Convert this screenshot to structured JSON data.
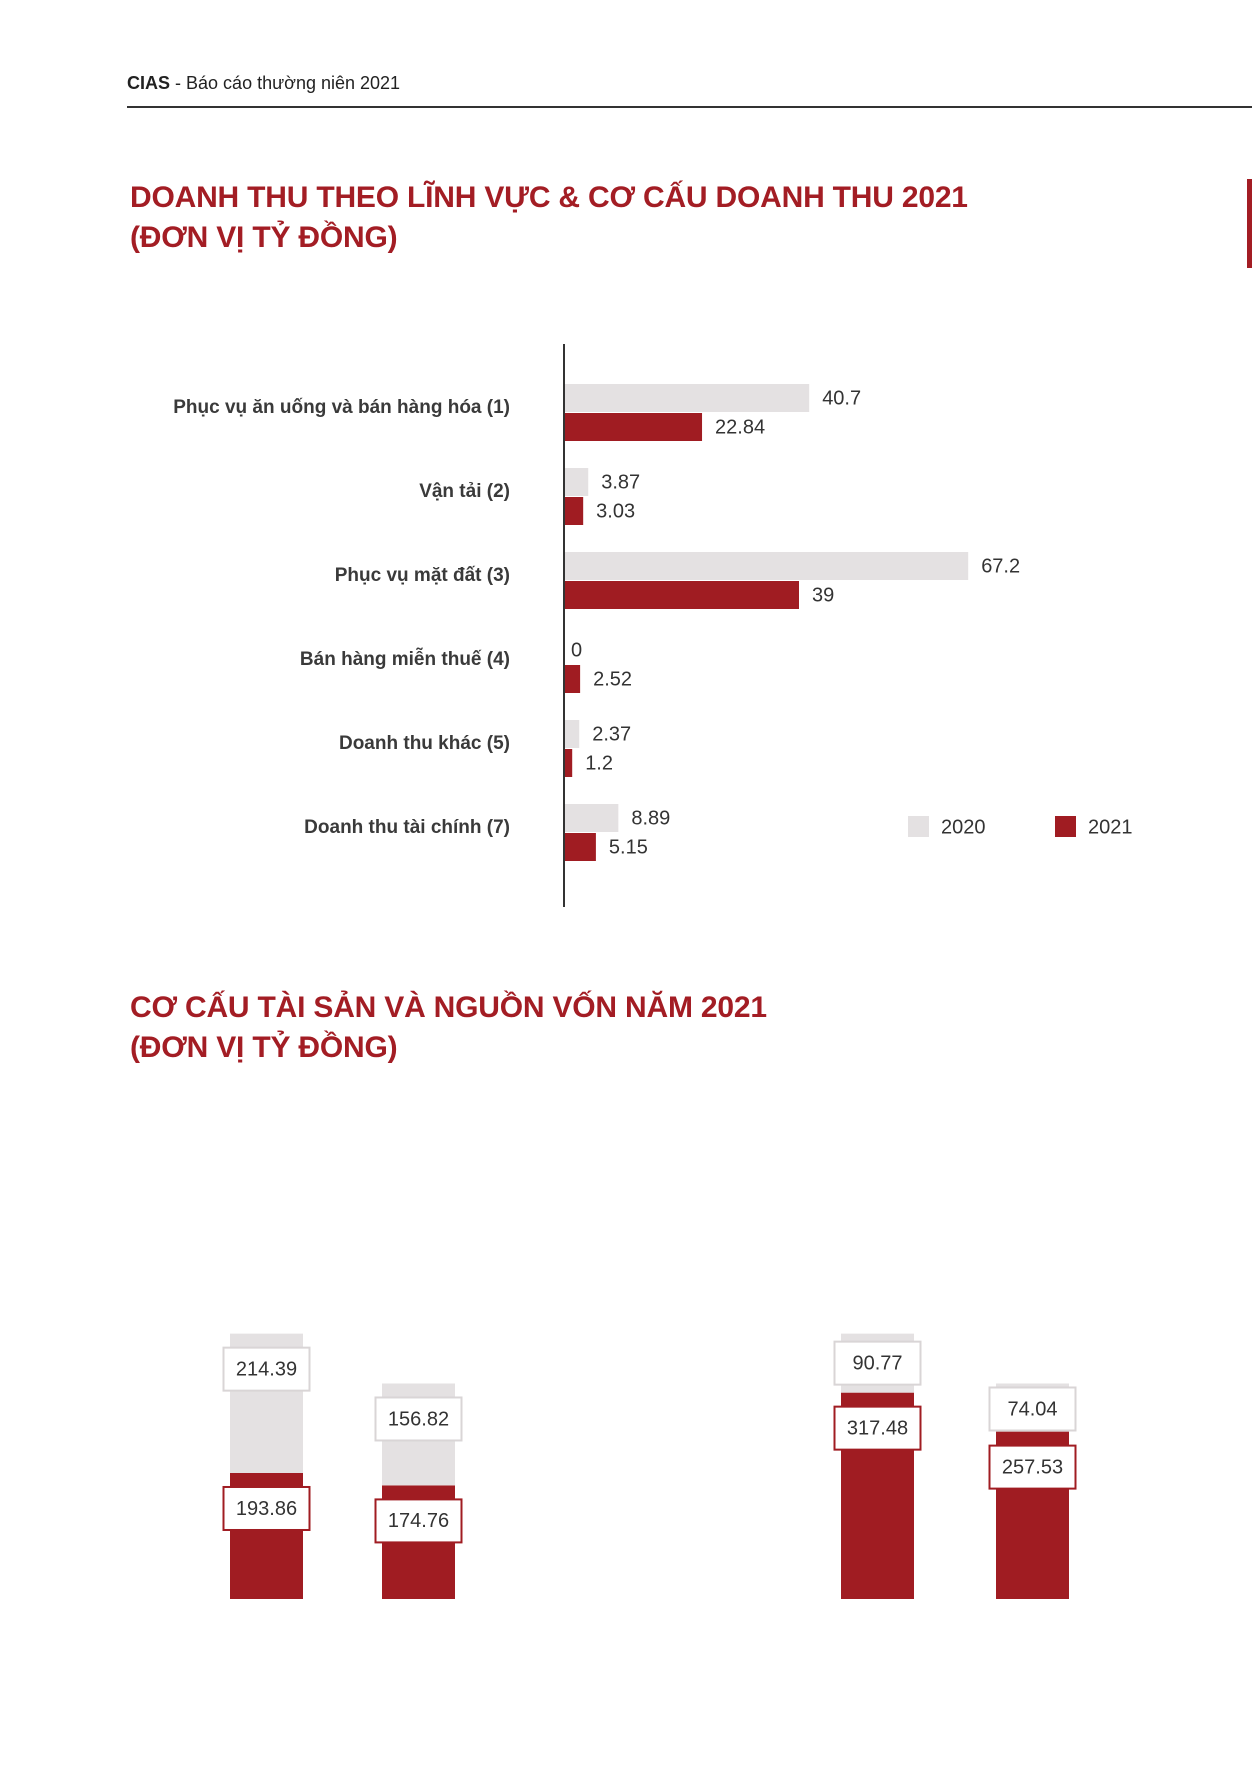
{
  "header": {
    "brand": "CIAS",
    "title": "- Báo cáo thường niên 2021"
  },
  "colors": {
    "accent": "#a31d24",
    "bar_light": "#e4e1e2",
    "bar_red": "#a01c22",
    "label_box_light_border": "#d9d5d6"
  },
  "chart_data": [
    {
      "type": "bar",
      "orientation": "horizontal",
      "title": "DOANH THU THEO LĨNH VỰC & CƠ CẤU DOANH THU 2021",
      "subtitle": "(ĐƠN VỊ TỶ ĐỒNG)",
      "categories": [
        "Phục vụ ăn uống và bán hàng hóa (1)",
        "Vận tải (2)",
        "Phục vụ mặt đất (3)",
        "Bán hàng miễn thuế (4)",
        "Doanh thu khác (5)",
        "Doanh thu tài chính (7)"
      ],
      "series": [
        {
          "name": "2020",
          "values": [
            40.7,
            3.87,
            67.2,
            0,
            2.37,
            8.89
          ],
          "color": "#e4e1e2"
        },
        {
          "name": "2021",
          "values": [
            22.84,
            3.03,
            39,
            2.52,
            1.2,
            5.15
          ],
          "color": "#a01c22"
        }
      ],
      "data_labels": true,
      "legend": "bottom-right",
      "grid": false
    },
    {
      "type": "bar",
      "stacked": true,
      "title": "CƠ CẤU TÀI SẢN VÀ NGUỒN VỐN NĂM 2021",
      "subtitle": "(ĐƠN VỊ TỶ ĐỒNG)",
      "series": [
        {
          "values": [
            193.86,
            174.76,
            317.48,
            257.53
          ],
          "color": "#a01c22"
        },
        {
          "values": [
            214.39,
            156.82,
            90.77,
            74.04
          ],
          "color": "#e4e1e2"
        }
      ],
      "data_labels": true,
      "grid": false
    }
  ]
}
